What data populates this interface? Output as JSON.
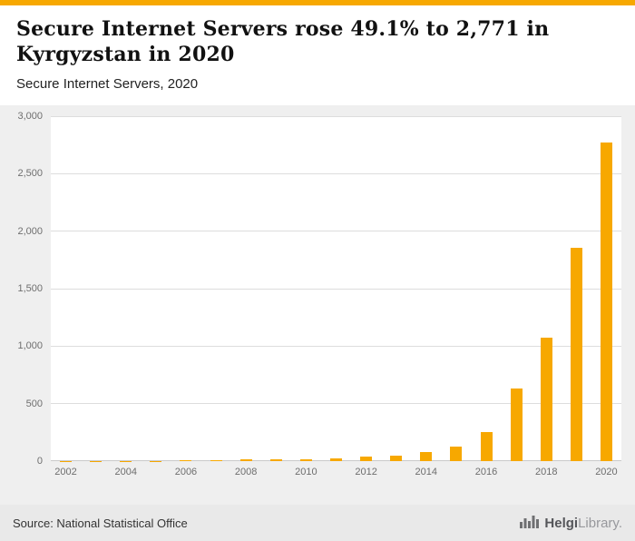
{
  "accent_color": "#F7A800",
  "header": {
    "title": "Secure Internet Servers rose 49.1% to 2,771 in Kyrgyzstan in 2020",
    "subtitle": "Secure Internet Servers, 2020"
  },
  "chart_data": {
    "type": "bar",
    "title": "Secure Internet Servers rose 49.1% to 2,771 in Kyrgyzstan in 2020",
    "subtitle": "Secure Internet Servers, 2020",
    "categories": [
      "2002",
      "2003",
      "2004",
      "2005",
      "2006",
      "2007",
      "2008",
      "2009",
      "2010",
      "2011",
      "2012",
      "2013",
      "2014",
      "2015",
      "2016",
      "2017",
      "2018",
      "2019",
      "2020"
    ],
    "values": [
      1,
      2,
      2,
      3,
      5,
      8,
      12,
      15,
      18,
      25,
      40,
      47,
      80,
      130,
      250,
      630,
      1075,
      1859,
      2771
    ],
    "bar_color": "#F7A800",
    "ylim": [
      0,
      3000
    ],
    "yticks": [
      0,
      500,
      1000,
      1500,
      2000,
      2500,
      3000
    ],
    "ytick_labels": [
      "0",
      "500",
      "1,000",
      "1,500",
      "2,000",
      "2,500",
      "3,000"
    ],
    "xtick_labels": [
      "2002",
      "2004",
      "2006",
      "2008",
      "2010",
      "2012",
      "2014",
      "2016",
      "2018",
      "2020"
    ],
    "grid": true,
    "legend": false,
    "xlabel": "",
    "ylabel": ""
  },
  "footer": {
    "source": "Source: National Statistical Office",
    "logo": {
      "part1": "Helgi",
      "part2": "Library",
      "suffix": "."
    }
  }
}
